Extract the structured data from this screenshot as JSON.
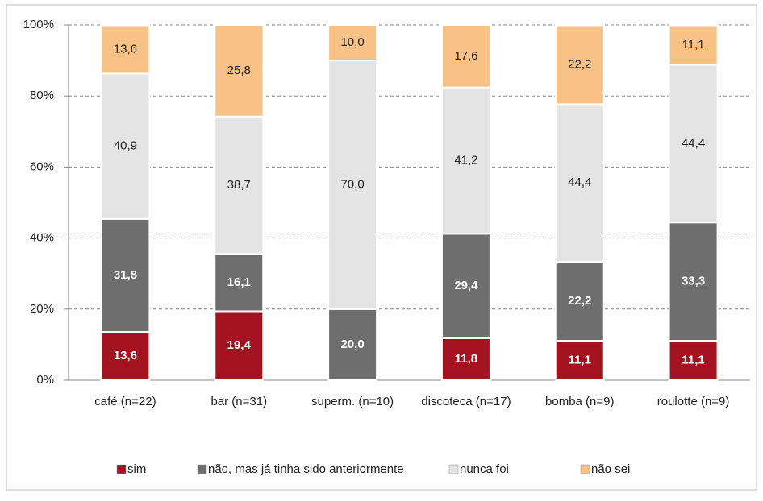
{
  "chart_data": {
    "type": "stacked_bar_percent",
    "categories": [
      "café (n=22)",
      "bar (n=31)",
      "superm. (n=10)",
      "discoteca (n=17)",
      "bomba (n=9)",
      "roulotte (n=9)"
    ],
    "series": [
      {
        "name": "sim",
        "color": "#a3121e",
        "values": [
          13.6,
          19.4,
          null,
          11.8,
          11.1,
          11.1
        ],
        "value_labels": [
          "13,6",
          "19,4",
          null,
          "11,8",
          "11,1",
          "11,1"
        ]
      },
      {
        "name": "não, mas já tinha sido anteriormente",
        "color": "#6e6e6e",
        "values": [
          31.8,
          16.1,
          20.0,
          29.4,
          22.2,
          33.3
        ],
        "value_labels": [
          "31,8",
          "16,1",
          "20,0",
          "29,4",
          "22,2",
          "33,3"
        ]
      },
      {
        "name": "nunca foi",
        "color": "#e4e4e4",
        "values": [
          40.9,
          38.7,
          70.0,
          41.2,
          44.4,
          44.4
        ],
        "value_labels": [
          "40,9",
          "38,7",
          "70,0",
          "41,2",
          "44,4",
          "44,4"
        ]
      },
      {
        "name": "não sei",
        "color": "#f8c287",
        "values": [
          13.6,
          25.8,
          10.0,
          17.6,
          22.2,
          11.1
        ],
        "value_labels": [
          "13,6",
          "25,8",
          "10,0",
          "17,6",
          "22,2",
          "11,1"
        ]
      }
    ],
    "ylim": [
      0,
      100
    ],
    "yticks": [
      {
        "value": 0,
        "label": "0%"
      },
      {
        "value": 20,
        "label": "20%"
      },
      {
        "value": 40,
        "label": "40%"
      },
      {
        "value": 60,
        "label": "60%"
      },
      {
        "value": 80,
        "label": "80%"
      },
      {
        "value": 100,
        "label": "100%"
      }
    ],
    "grid": true,
    "legend": "bottom"
  }
}
